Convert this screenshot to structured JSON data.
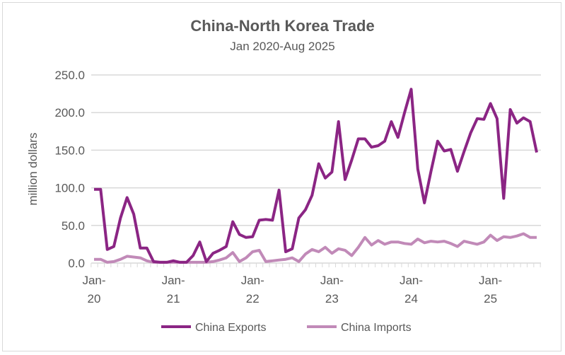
{
  "chart_data": {
    "type": "line",
    "title": "China-North Korea Trade",
    "subtitle": "Jan 2020-Aug 2025",
    "ylabel": "million dollars",
    "xlabel": "",
    "ylim": [
      0,
      250
    ],
    "yticks": [
      "0.0",
      "50.0",
      "100.0",
      "150.0",
      "200.0",
      "250.0"
    ],
    "ytick_values": [
      0,
      50,
      100,
      150,
      200,
      250
    ],
    "xtick_labels": [
      [
        "Jan-",
        "20"
      ],
      [
        "Jan-",
        "21"
      ],
      [
        "Jan-",
        "22"
      ],
      [
        "Jan-",
        "23"
      ],
      [
        "Jan-",
        "24"
      ],
      [
        "Jan-",
        "25"
      ]
    ],
    "xtick_month_index": [
      0,
      12,
      24,
      36,
      48,
      60
    ],
    "n_months": 68,
    "grid": true,
    "legend_position": "bottom",
    "series": [
      {
        "name": "China Exports",
        "color": "#8b2584",
        "values": [
          98,
          98,
          18,
          22,
          60,
          87,
          65,
          20,
          20,
          2,
          1,
          1,
          3,
          1,
          1,
          10,
          28,
          2,
          13,
          17,
          22,
          55,
          38,
          34,
          35,
          57,
          58,
          57,
          97,
          15,
          19,
          60,
          71,
          90,
          132,
          113,
          121,
          188,
          111,
          137,
          165,
          165,
          154,
          156,
          162,
          188,
          167,
          200,
          231,
          125,
          80,
          122,
          162,
          149,
          151,
          122,
          148,
          173,
          192,
          191,
          212,
          192,
          86,
          204,
          186,
          193,
          188,
          147
        ]
      },
      {
        "name": "China Imports",
        "color": "#c18ab8",
        "values": [
          5,
          5,
          1,
          2,
          5,
          9,
          8,
          7,
          3,
          1,
          1,
          1,
          1,
          1,
          1,
          1,
          1,
          1,
          2,
          4,
          7,
          14,
          2,
          7,
          15,
          17,
          2,
          3,
          4,
          5,
          7,
          2,
          12,
          18,
          15,
          21,
          13,
          19,
          17,
          10,
          21,
          34,
          24,
          30,
          25,
          28,
          28,
          26,
          25,
          32,
          27,
          29,
          28,
          29,
          26,
          22,
          29,
          27,
          25,
          28,
          37,
          30,
          35,
          34,
          36,
          39,
          34,
          34
        ]
      }
    ]
  }
}
